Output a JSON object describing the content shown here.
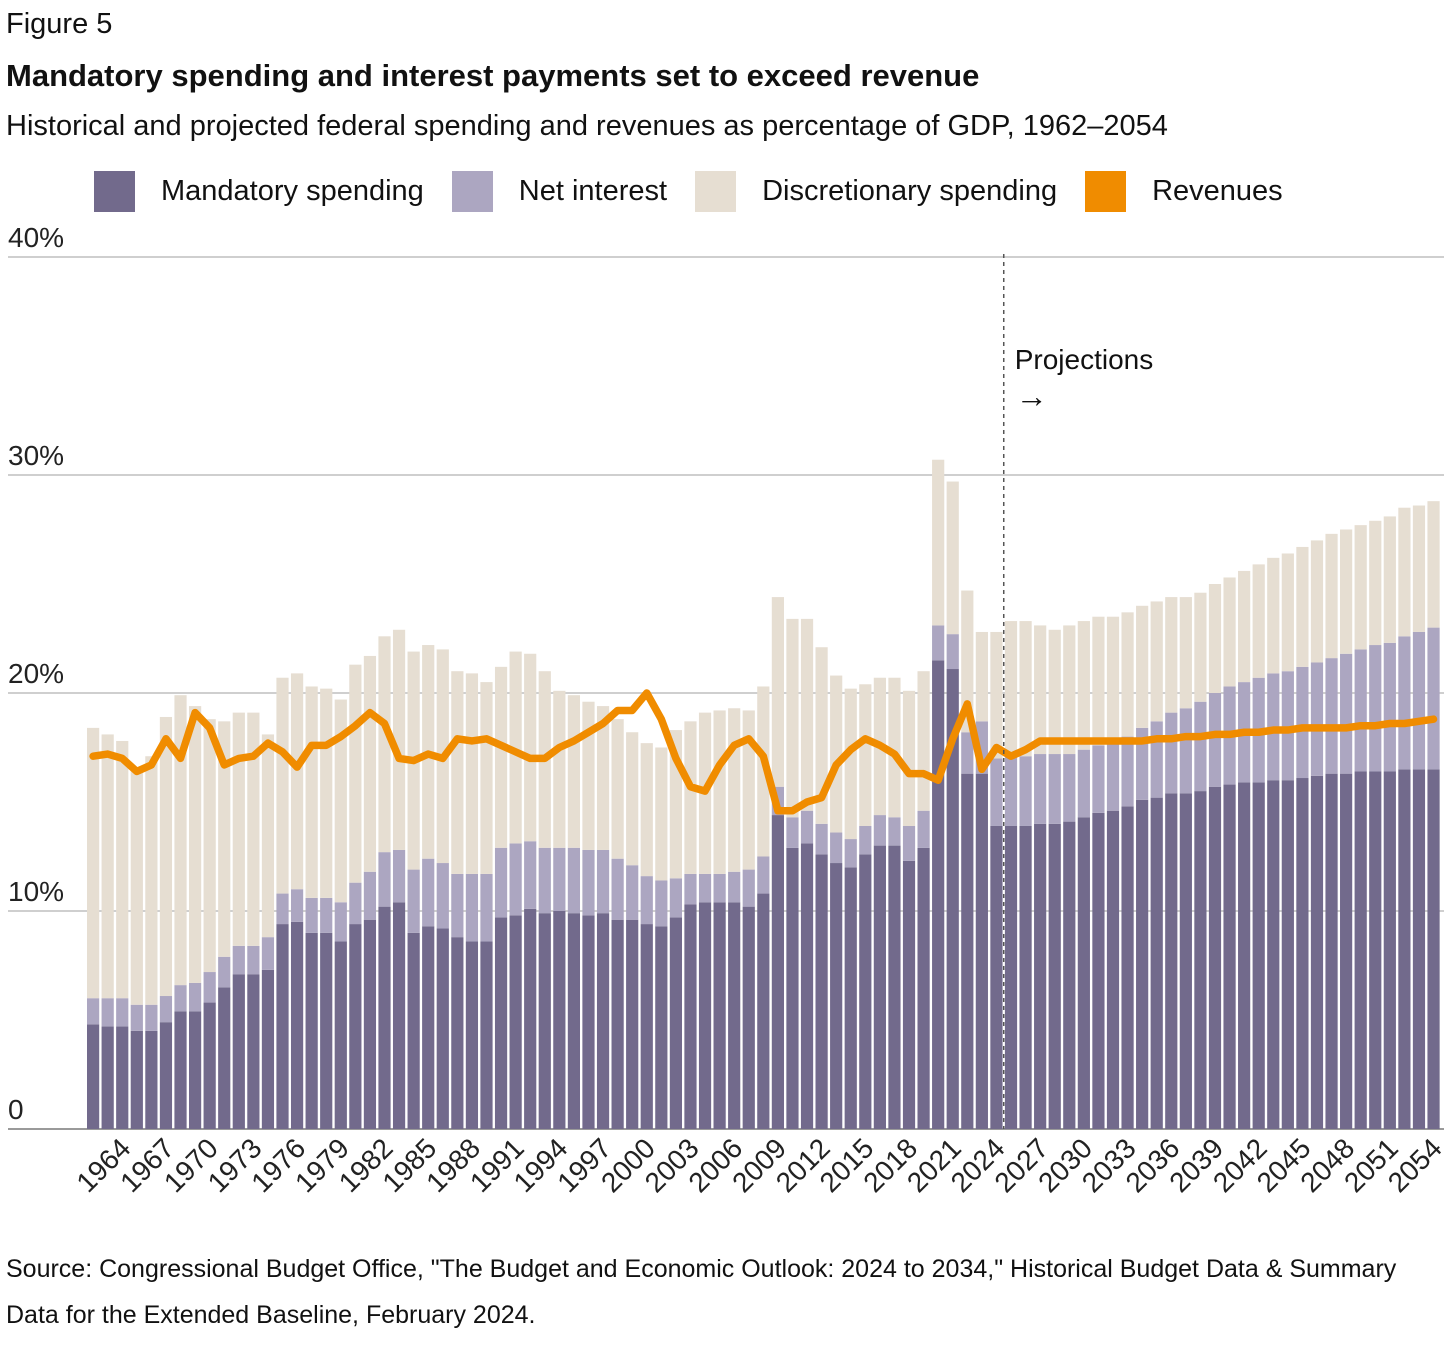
{
  "figure_label": "Figure 5",
  "title": "Mandatory spending and interest payments set to exceed revenue",
  "subtitle": "Historical and projected federal spending and revenues as percentage of GDP, 1962–2054",
  "legend": [
    {
      "label": "Mandatory spending",
      "color": "#726a8c"
    },
    {
      "label": "Net interest",
      "color": "#aca6c1"
    },
    {
      "label": "Discretionary spending",
      "color": "#e6ded2"
    },
    {
      "label": "Revenues",
      "color": "#f08c00"
    }
  ],
  "annotation": {
    "text": "Projections",
    "arrow": "→",
    "year": 2024
  },
  "source_text": "Source: Congressional Budget Office, \"The Budget and Economic Outlook: 2024 to 2034,\" Historical Budget Data & Summary Data for the Extended Baseline, February 2024.",
  "chart_data": {
    "type": "bar",
    "stacked": true,
    "x": [
      1962,
      1963,
      1964,
      1965,
      1966,
      1967,
      1968,
      1969,
      1970,
      1971,
      1972,
      1973,
      1974,
      1975,
      1976,
      1977,
      1978,
      1979,
      1980,
      1981,
      1982,
      1983,
      1984,
      1985,
      1986,
      1987,
      1988,
      1989,
      1990,
      1991,
      1992,
      1993,
      1994,
      1995,
      1996,
      1997,
      1998,
      1999,
      2000,
      2001,
      2002,
      2003,
      2004,
      2005,
      2006,
      2007,
      2008,
      2009,
      2010,
      2011,
      2012,
      2013,
      2014,
      2015,
      2016,
      2017,
      2018,
      2019,
      2020,
      2021,
      2022,
      2023,
      2024,
      2025,
      2026,
      2027,
      2028,
      2029,
      2030,
      2031,
      2032,
      2033,
      2034,
      2035,
      2036,
      2037,
      2038,
      2039,
      2040,
      2041,
      2042,
      2043,
      2044,
      2045,
      2046,
      2047,
      2048,
      2049,
      2050,
      2051,
      2052,
      2053,
      2054
    ],
    "x_tick_labels": [
      "1964",
      "1967",
      "1970",
      "1973",
      "1976",
      "1979",
      "1982",
      "1985",
      "1988",
      "1991",
      "1994",
      "1997",
      "2000",
      "2003",
      "2006",
      "2009",
      "2012",
      "2015",
      "2018",
      "2021",
      "2024",
      "2027",
      "2030",
      "2033",
      "2036",
      "2039",
      "2042",
      "2045",
      "2048",
      "2051",
      "2054"
    ],
    "y_ticks": [
      "0",
      "10%",
      "20%",
      "30%",
      "40%"
    ],
    "ylim": [
      0,
      40
    ],
    "projection_start_year": 2024,
    "series": [
      {
        "name": "Mandatory spending",
        "color": "#726a8c",
        "values": [
          4.8,
          4.7,
          4.7,
          4.5,
          4.5,
          4.9,
          5.4,
          5.4,
          5.8,
          6.5,
          7.1,
          7.1,
          7.3,
          9.4,
          9.5,
          9.0,
          9.0,
          8.6,
          9.4,
          9.6,
          10.2,
          10.4,
          9.0,
          9.3,
          9.2,
          8.8,
          8.6,
          8.6,
          9.7,
          9.8,
          10.1,
          9.9,
          10.0,
          9.9,
          9.8,
          9.9,
          9.6,
          9.6,
          9.4,
          9.3,
          9.7,
          10.3,
          10.4,
          10.4,
          10.4,
          10.2,
          10.8,
          14.4,
          12.9,
          13.1,
          12.6,
          12.2,
          12.0,
          12.6,
          13.0,
          13.0,
          12.3,
          12.9,
          21.5,
          21.1,
          16.3,
          16.3,
          13.9,
          13.9,
          13.9,
          14.0,
          14.0,
          14.1,
          14.3,
          14.5,
          14.6,
          14.8,
          15.1,
          15.2,
          15.4,
          15.4,
          15.5,
          15.7,
          15.8,
          15.9,
          15.9,
          16.0,
          16.0,
          16.1,
          16.2,
          16.3,
          16.3,
          16.4,
          16.4,
          16.4,
          16.5,
          16.5,
          16.5
        ]
      },
      {
        "name": "Net interest",
        "color": "#aca6c1",
        "values": [
          1.2,
          1.3,
          1.3,
          1.2,
          1.2,
          1.2,
          1.2,
          1.3,
          1.4,
          1.4,
          1.3,
          1.3,
          1.5,
          1.4,
          1.5,
          1.6,
          1.6,
          1.8,
          1.9,
          2.2,
          2.5,
          2.4,
          2.9,
          3.1,
          3.0,
          2.9,
          3.1,
          3.1,
          3.2,
          3.3,
          3.1,
          3.0,
          2.9,
          3.0,
          3.0,
          2.9,
          2.8,
          2.5,
          2.2,
          2.1,
          1.8,
          1.4,
          1.3,
          1.3,
          1.4,
          1.7,
          1.7,
          1.3,
          1.4,
          1.5,
          1.4,
          1.4,
          1.3,
          1.3,
          1.4,
          1.3,
          1.6,
          1.7,
          1.6,
          1.6,
          1.9,
          2.4,
          3.1,
          3.2,
          3.2,
          3.2,
          3.2,
          3.1,
          3.1,
          3.1,
          3.1,
          3.2,
          3.3,
          3.5,
          3.7,
          3.9,
          4.1,
          4.3,
          4.5,
          4.6,
          4.8,
          4.9,
          5.0,
          5.1,
          5.2,
          5.3,
          5.5,
          5.6,
          5.8,
          5.9,
          6.1,
          6.3,
          6.5
        ]
      },
      {
        "name": "Discretionary spending",
        "color": "#e6ded2",
        "values": [
          12.4,
          12.1,
          11.8,
          10.8,
          11.4,
          12.8,
          13.3,
          12.7,
          11.6,
          10.8,
          10.7,
          10.7,
          9.3,
          9.9,
          9.9,
          9.7,
          9.6,
          9.3,
          10.0,
          9.9,
          9.9,
          10.1,
          10.0,
          9.8,
          9.8,
          9.3,
          9.2,
          8.8,
          8.3,
          8.8,
          8.6,
          8.1,
          7.2,
          7.0,
          6.8,
          6.6,
          6.4,
          6.1,
          6.1,
          6.1,
          6.8,
          7.0,
          7.4,
          7.5,
          7.5,
          7.3,
          7.8,
          8.7,
          9.1,
          8.8,
          8.1,
          7.2,
          6.9,
          6.5,
          6.3,
          6.4,
          6.2,
          6.4,
          7.6,
          7.0,
          6.5,
          4.1,
          5.8,
          6.2,
          6.2,
          5.9,
          5.7,
          5.9,
          5.9,
          5.9,
          5.8,
          5.7,
          5.6,
          5.5,
          5.3,
          5.1,
          5.0,
          5.0,
          5.0,
          5.1,
          5.2,
          5.3,
          5.4,
          5.5,
          5.6,
          5.7,
          5.7,
          5.7,
          5.7,
          5.8,
          5.9,
          5.8,
          5.8
        ]
      },
      {
        "name": "Revenues",
        "color": "#f08c00",
        "type": "line",
        "values": [
          17.1,
          17.2,
          17.0,
          16.4,
          16.7,
          17.9,
          17.0,
          19.1,
          18.4,
          16.7,
          17.0,
          17.1,
          17.7,
          17.3,
          16.6,
          17.6,
          17.6,
          18.0,
          18.5,
          19.1,
          18.6,
          17.0,
          16.9,
          17.2,
          17.0,
          17.9,
          17.8,
          17.9,
          17.6,
          17.3,
          17.0,
          17.0,
          17.5,
          17.8,
          18.2,
          18.6,
          19.2,
          19.2,
          20.0,
          18.8,
          17.0,
          15.7,
          15.5,
          16.7,
          17.6,
          17.9,
          17.1,
          14.6,
          14.6,
          15.0,
          15.2,
          16.7,
          17.4,
          17.9,
          17.6,
          17.2,
          16.3,
          16.3,
          16.0,
          17.9,
          19.5,
          16.5,
          17.5,
          17.1,
          17.4,
          17.8,
          17.8,
          17.8,
          17.8,
          17.8,
          17.8,
          17.8,
          17.8,
          17.9,
          17.9,
          18.0,
          18.0,
          18.1,
          18.1,
          18.2,
          18.2,
          18.3,
          18.3,
          18.4,
          18.4,
          18.4,
          18.4,
          18.5,
          18.5,
          18.6,
          18.6,
          18.7,
          18.8
        ]
      }
    ]
  }
}
